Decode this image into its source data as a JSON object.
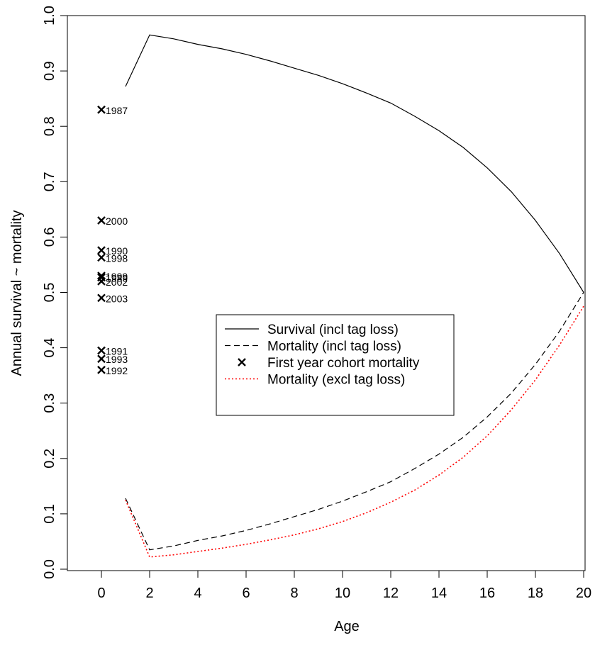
{
  "chart_data": {
    "type": "line",
    "title": "",
    "xlabel": "Age",
    "ylabel": "Annual survival ~ mortality",
    "xlim": [
      0,
      20
    ],
    "ylim": [
      0,
      1
    ],
    "x_ticks": [
      0,
      2,
      4,
      6,
      8,
      10,
      12,
      14,
      16,
      18,
      20
    ],
    "y_ticks": [
      0.0,
      0.1,
      0.2,
      0.3,
      0.4,
      0.5,
      0.6,
      0.7,
      0.8,
      0.9,
      1.0
    ],
    "y_tick_labels": [
      "0.0",
      "0.1",
      "0.2",
      "0.3",
      "0.4",
      "0.5",
      "0.6",
      "0.7",
      "0.8",
      "0.9",
      "1.0"
    ],
    "legend_position": "center",
    "grid": false,
    "series": [
      {
        "name": "Survival (incl tag loss)",
        "style": "solid",
        "color": "#000000",
        "x": [
          1,
          2,
          3,
          4,
          5,
          6,
          7,
          8,
          9,
          10,
          11,
          12,
          13,
          14,
          15,
          16,
          17,
          18,
          19,
          20
        ],
        "y": [
          0.872,
          0.965,
          0.958,
          0.948,
          0.94,
          0.93,
          0.918,
          0.905,
          0.892,
          0.877,
          0.86,
          0.842,
          0.818,
          0.792,
          0.762,
          0.725,
          0.682,
          0.63,
          0.57,
          0.5
        ]
      },
      {
        "name": "Mortality (incl tag loss)",
        "style": "dashed",
        "color": "#000000",
        "x": [
          1,
          2,
          3,
          4,
          5,
          6,
          7,
          8,
          9,
          10,
          11,
          12,
          13,
          14,
          15,
          16,
          17,
          18,
          19,
          20
        ],
        "y": [
          0.128,
          0.035,
          0.042,
          0.052,
          0.06,
          0.07,
          0.082,
          0.095,
          0.108,
          0.123,
          0.14,
          0.158,
          0.182,
          0.208,
          0.238,
          0.275,
          0.318,
          0.37,
          0.43,
          0.5
        ]
      },
      {
        "name": "Mortality (excl tag loss)",
        "style": "dotted",
        "color": "#ff0000",
        "x": [
          1,
          2,
          3,
          4,
          5,
          6,
          7,
          8,
          9,
          10,
          11,
          12,
          13,
          14,
          15,
          16,
          17,
          18,
          19,
          20
        ],
        "y": [
          0.125,
          0.022,
          0.026,
          0.032,
          0.038,
          0.045,
          0.053,
          0.062,
          0.073,
          0.086,
          0.102,
          0.121,
          0.143,
          0.17,
          0.202,
          0.241,
          0.288,
          0.342,
          0.405,
          0.475
        ]
      }
    ],
    "points": {
      "name": "First year cohort mortality",
      "marker": "x",
      "color": "#000000",
      "x": 0,
      "items": [
        {
          "label": "1987",
          "y": 0.83
        },
        {
          "label": "2000",
          "y": 0.63
        },
        {
          "label": "1990",
          "y": 0.576
        },
        {
          "label": "1998",
          "y": 0.563
        },
        {
          "label": "1999",
          "y": 0.53
        },
        {
          "label": "1989",
          "y": 0.527
        },
        {
          "label": "2002",
          "y": 0.52
        },
        {
          "label": "2003",
          "y": 0.49
        },
        {
          "label": "1991",
          "y": 0.395
        },
        {
          "label": "1993",
          "y": 0.38
        },
        {
          "label": "1992",
          "y": 0.36
        }
      ]
    },
    "legend": [
      {
        "label": "Survival (incl tag loss)",
        "symbol": "solid"
      },
      {
        "label": "Mortality (incl tag loss)",
        "symbol": "dashed"
      },
      {
        "label": "First year cohort mortality",
        "symbol": "x"
      },
      {
        "label": "Mortality (excl tag loss)",
        "symbol": "dotted-red"
      }
    ]
  }
}
